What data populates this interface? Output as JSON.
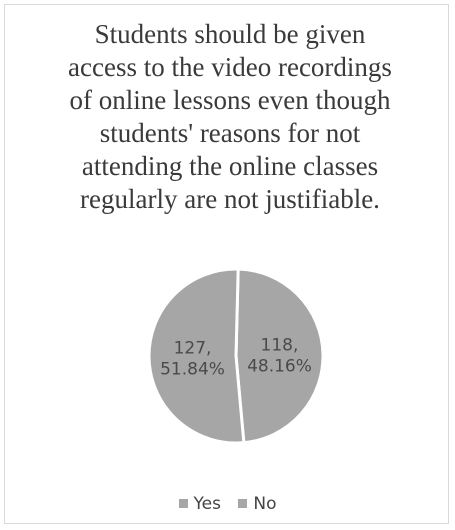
{
  "chart_data": {
    "type": "pie",
    "title_lines": [
      "Students should be given",
      "access to the video recordings",
      "of online lessons even though",
      "students' reasons for not",
      "attending the online classes",
      "regularly are not justifiable."
    ],
    "slices": [
      {
        "category": "Yes",
        "value": 118,
        "percent_label": "48.16%",
        "value_label": "118,",
        "color": "#a6a6a6"
      },
      {
        "category": "No",
        "value": 127,
        "percent_label": "51.84%",
        "value_label": "127,",
        "color": "#a6a6a6"
      }
    ],
    "legend": [
      "Yes",
      "No"
    ],
    "legend_placement": "bottom"
  }
}
